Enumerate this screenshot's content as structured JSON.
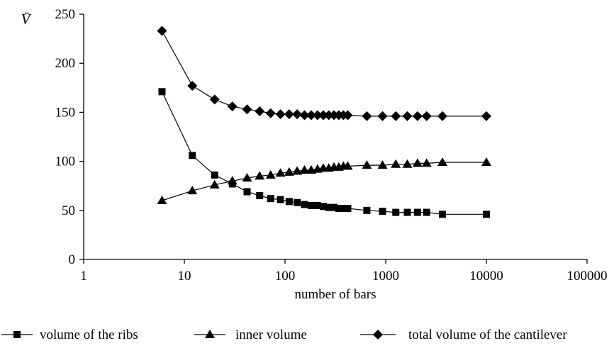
{
  "chart_data": {
    "type": "line",
    "title": "",
    "xlabel": "number of bars",
    "ylabel": "V̄",
    "x_scale": "log",
    "xlim": [
      1,
      100000
    ],
    "ylim": [
      0,
      250
    ],
    "x_ticks": [
      "1",
      "10",
      "100",
      "1000",
      "10000",
      "100000"
    ],
    "y_ticks": [
      "0",
      "50",
      "100",
      "150",
      "200",
      "250"
    ],
    "grid": false,
    "legend_position": "bottom",
    "series": [
      {
        "name": "volume of the ribs",
        "marker": "square",
        "x": [
          6,
          12,
          20,
          30,
          42,
          56,
          72,
          90,
          110,
          132,
          156,
          182,
          210,
          240,
          272,
          306,
          342,
          380,
          420,
          650,
          930,
          1260,
          1640,
          2070,
          2550,
          3660,
          10000
        ],
        "values": [
          171,
          106,
          86,
          77,
          69,
          65,
          62,
          61,
          59,
          58,
          56,
          55,
          55,
          54,
          53,
          53,
          52,
          52,
          52,
          50,
          49,
          48,
          48,
          48,
          48,
          46,
          46
        ]
      },
      {
        "name": "inner volume",
        "marker": "triangle",
        "x": [
          6,
          12,
          20,
          30,
          42,
          56,
          72,
          90,
          110,
          132,
          156,
          182,
          210,
          240,
          272,
          306,
          342,
          380,
          420,
          650,
          930,
          1260,
          1640,
          2070,
          2550,
          3660,
          10000
        ],
        "values": [
          60,
          70,
          76,
          80,
          83,
          85,
          86,
          88,
          89,
          90,
          91,
          91,
          92,
          93,
          93,
          94,
          94,
          95,
          95,
          96,
          96,
          97,
          97,
          98,
          98,
          99,
          99
        ]
      },
      {
        "name": "total volume of the cantilever",
        "marker": "diamond",
        "x": [
          6,
          12,
          20,
          30,
          42,
          56,
          72,
          90,
          110,
          132,
          156,
          182,
          210,
          240,
          272,
          306,
          342,
          380,
          420,
          650,
          930,
          1260,
          1640,
          2070,
          2550,
          3660,
          10000
        ],
        "values": [
          233,
          177,
          163,
          156,
          153,
          151,
          149,
          148,
          148,
          148,
          147,
          147,
          147,
          147,
          147,
          147,
          147,
          147,
          147,
          146,
          146,
          146,
          146,
          146,
          146,
          146,
          146
        ]
      }
    ]
  }
}
